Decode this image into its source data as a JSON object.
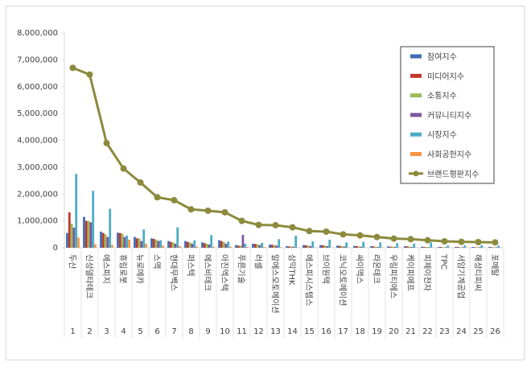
{
  "chart_data": {
    "type": "bar",
    "categories": [
      "두산",
      "신성델타테크",
      "에스피지",
      "휴림로봇",
      "뉴로메카",
      "스맥",
      "현대무벡스",
      "퍼스텍",
      "에스비테크",
      "아진엑스텍",
      "푸른기술",
      "러셀",
      "알에스오토메이션",
      "삼익THK",
      "에스피시스템스",
      "브이원텍",
      "코닉오토메이션",
      "싸이맥스",
      "라온테크",
      "우림피티에스",
      "케이피에프",
      "피제이전자",
      "TPC",
      "서암기계공업",
      "해성티피씨",
      "포메탈"
    ],
    "category_numbers": [
      "1",
      "2",
      "3",
      "4",
      "5",
      "6",
      "7",
      "8",
      "9",
      "10",
      "11",
      "12",
      "13",
      "14",
      "15",
      "16",
      "17",
      "18",
      "19",
      "20",
      "21",
      "22",
      "23",
      "24",
      "25",
      "26"
    ],
    "series": [
      {
        "name": "참여지수",
        "color": "#3f6eb5",
        "values": [
          550000,
          1150000,
          600000,
          560000,
          400000,
          350000,
          250000,
          250000,
          200000,
          280000,
          100000,
          150000,
          120000,
          60000,
          100000,
          100000,
          80000,
          70000,
          60000,
          50000,
          60000,
          40000,
          30000,
          30000,
          30000,
          30000
        ]
      },
      {
        "name": "미디어지수",
        "color": "#c0392b",
        "values": [
          1320000,
          1000000,
          550000,
          550000,
          350000,
          330000,
          220000,
          220000,
          170000,
          250000,
          80000,
          140000,
          110000,
          50000,
          90000,
          90000,
          70000,
          60000,
          50000,
          40000,
          50000,
          30000,
          30000,
          30000,
          20000,
          20000
        ]
      },
      {
        "name": "소통지수",
        "color": "#9bbb59",
        "values": [
          900000,
          1000000,
          500000,
          520000,
          350000,
          300000,
          200000,
          200000,
          150000,
          220000,
          80000,
          130000,
          100000,
          50000,
          80000,
          80000,
          60000,
          50000,
          40000,
          40000,
          40000,
          30000,
          20000,
          20000,
          20000,
          20000
        ]
      },
      {
        "name": "커뮤니티지수",
        "color": "#7e57a0",
        "values": [
          750000,
          950000,
          400000,
          400000,
          250000,
          250000,
          150000,
          150000,
          120000,
          150000,
          480000,
          100000,
          80000,
          40000,
          60000,
          60000,
          50000,
          40000,
          30000,
          30000,
          30000,
          20000,
          20000,
          20000,
          20000,
          20000
        ]
      },
      {
        "name": "시장지수",
        "color": "#4bacc6",
        "values": [
          2750000,
          2120000,
          1450000,
          450000,
          680000,
          280000,
          760000,
          270000,
          470000,
          230000,
          150000,
          180000,
          320000,
          450000,
          240000,
          300000,
          200000,
          220000,
          200000,
          170000,
          150000,
          200000,
          80000,
          90000,
          90000,
          80000
        ]
      },
      {
        "name": "사회공헌지수",
        "color": "#f79646",
        "values": [
          380000,
          130000,
          100000,
          300000,
          150000,
          80000,
          60000,
          50000,
          40000,
          40000,
          30000,
          30000,
          20000,
          10000,
          10000,
          10000,
          10000,
          10000,
          10000,
          10000,
          10000,
          10000,
          10000,
          10000,
          10000,
          10000
        ]
      },
      {
        "name": "브랜드평판지수",
        "color": "#8c8a3c",
        "type": "line",
        "values": [
          6700000,
          6450000,
          3900000,
          2950000,
          2430000,
          1880000,
          1770000,
          1430000,
          1380000,
          1320000,
          1000000,
          850000,
          840000,
          760000,
          620000,
          600000,
          500000,
          460000,
          400000,
          340000,
          320000,
          280000,
          240000,
          220000,
          210000,
          200000
        ]
      }
    ],
    "ylim": [
      0,
      8000000
    ],
    "yticks": [
      0,
      {
        "value": 1000000,
        "label": "1,000,000"
      },
      {
        "value": 2000000,
        "label": "2,000,000"
      },
      {
        "value": 3000000,
        "label": "3,000,000"
      },
      {
        "value": 4000000,
        "label": "4,000,000"
      },
      {
        "value": 5000000,
        "label": "5,000,000"
      },
      {
        "value": 6000000,
        "label": "6,000,000"
      },
      {
        "value": 7000000,
        "label": "7,000,000"
      },
      {
        "value": 8000000,
        "label": "8,000,000"
      }
    ],
    "legend": "upper right"
  }
}
